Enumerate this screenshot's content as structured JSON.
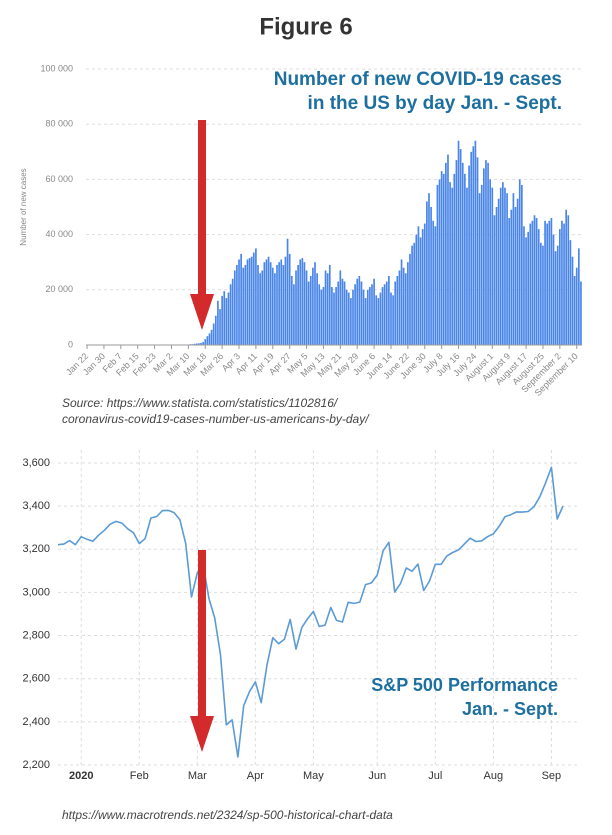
{
  "title": "Figure 6",
  "chart_data": [
    {
      "type": "bar",
      "annotation": [
        "Number of new COVID-19 cases",
        "in the US by day Jan. - Sept."
      ],
      "y_label": "Number of new cases",
      "categories": [
        "Jan 22",
        null,
        null,
        null,
        null,
        null,
        null,
        null,
        "Jan 30",
        null,
        null,
        null,
        null,
        null,
        null,
        null,
        "Feb 7",
        null,
        null,
        null,
        null,
        null,
        null,
        null,
        "Feb 15",
        null,
        null,
        null,
        null,
        null,
        null,
        null,
        "Feb 23",
        null,
        null,
        null,
        null,
        null,
        null,
        null,
        "Mar 2",
        null,
        null,
        null,
        null,
        null,
        null,
        null,
        "Mar 10",
        null,
        null,
        null,
        null,
        null,
        null,
        null,
        "Mar 18",
        null,
        null,
        null,
        null,
        null,
        null,
        null,
        "Mar 26",
        null,
        null,
        null,
        null,
        null,
        null,
        null,
        "Apr 3",
        null,
        null,
        null,
        null,
        null,
        null,
        null,
        "Apr 11",
        null,
        null,
        null,
        null,
        null,
        null,
        null,
        "Apr 19",
        null,
        null,
        null,
        null,
        null,
        null,
        null,
        "Apr 27",
        null,
        null,
        null,
        null,
        null,
        null,
        null,
        "May 5",
        null,
        null,
        null,
        null,
        null,
        null,
        null,
        "May 13",
        null,
        null,
        null,
        null,
        null,
        null,
        null,
        "May 21",
        null,
        null,
        null,
        null,
        null,
        null,
        null,
        "May 29",
        null,
        null,
        null,
        null,
        null,
        null,
        null,
        "June 6",
        null,
        null,
        null,
        null,
        null,
        null,
        null,
        "June 14",
        null,
        null,
        null,
        null,
        null,
        null,
        null,
        "June 22",
        null,
        null,
        null,
        null,
        null,
        null,
        null,
        "June 30",
        null,
        null,
        null,
        null,
        null,
        null,
        null,
        "July 8",
        null,
        null,
        null,
        null,
        null,
        null,
        null,
        "July 16",
        null,
        null,
        null,
        null,
        null,
        null,
        null,
        "July 24",
        null,
        null,
        null,
        null,
        null,
        null,
        null,
        "August 1",
        null,
        null,
        null,
        null,
        null,
        null,
        null,
        "August 9",
        null,
        null,
        null,
        null,
        null,
        null,
        null,
        "August 17",
        null,
        null,
        null,
        null,
        null,
        null,
        null,
        "August 25",
        null,
        null,
        null,
        null,
        null,
        null,
        null,
        "September 2",
        null,
        null,
        null,
        null,
        null,
        null,
        null,
        "September 10",
        null,
        null
      ],
      "values": [
        1,
        0,
        1,
        0,
        3,
        0,
        0,
        0,
        1,
        0,
        1,
        0,
        0,
        0,
        2,
        0,
        0,
        0,
        0,
        0,
        0,
        0,
        0,
        0,
        1,
        0,
        0,
        0,
        0,
        0,
        0,
        0,
        0,
        0,
        12,
        2,
        1,
        3,
        5,
        8,
        12,
        18,
        28,
        47,
        62,
        72,
        120,
        110,
        130,
        280,
        290,
        440,
        530,
        620,
        740,
        1100,
        2100,
        3200,
        4200,
        5500,
        7800,
        10600,
        16000,
        13000,
        17800,
        19500,
        17000,
        19000,
        22000,
        24000,
        27000,
        29000,
        31000,
        33000,
        28000,
        29000,
        31000,
        31500,
        32000,
        33500,
        35000,
        29000,
        26000,
        27000,
        30000,
        31000,
        32000,
        30000,
        28000,
        26000,
        29000,
        30000,
        31000,
        29000,
        32000,
        38500,
        33000,
        25000,
        22000,
        27000,
        29000,
        31000,
        31500,
        30000,
        27000,
        23000,
        25000,
        28000,
        30000,
        26000,
        22000,
        20000,
        21000,
        27000,
        26000,
        29000,
        21000,
        19000,
        21000,
        23000,
        27000,
        24000,
        23000,
        20000,
        19000,
        17000,
        20000,
        22000,
        24000,
        25000,
        23000,
        20000,
        17000,
        20000,
        21000,
        22000,
        24000,
        18000,
        17000,
        19000,
        21000,
        22000,
        23000,
        25000,
        19000,
        18000,
        23000,
        25000,
        27000,
        31000,
        28000,
        26000,
        30000,
        33000,
        36000,
        37000,
        40000,
        43000,
        39000,
        42000,
        44000,
        52000,
        55000,
        50000,
        45000,
        43000,
        58000,
        60000,
        63000,
        62000,
        66000,
        69000,
        59000,
        57000,
        62000,
        67000,
        74000,
        71000,
        66000,
        62000,
        57000,
        65000,
        70000,
        72000,
        74000,
        68000,
        55000,
        58000,
        64000,
        67000,
        66000,
        60000,
        57000,
        47000,
        50000,
        53000,
        57000,
        59000,
        57000,
        55000,
        46000,
        49000,
        55000,
        50000,
        53000,
        60000,
        58000,
        43000,
        39000,
        41000,
        44000,
        45000,
        47000,
        46000,
        42000,
        37000,
        36000,
        45000,
        44000,
        45000,
        46000,
        40000,
        34000,
        36000,
        42000,
        45000,
        44000,
        49000,
        47000,
        38000,
        32000,
        25000,
        28000,
        35000,
        23000
      ],
      "color": "#4a86e8",
      "ylim": [
        0,
        100000
      ],
      "yticks": [
        0,
        {
          "value": 20000,
          "label": "20 000"
        },
        {
          "value": 40000,
          "label": "40 000"
        },
        {
          "value": 60000,
          "label": "60 000"
        },
        {
          "value": 80000,
          "label": "80 000"
        },
        {
          "value": 100000,
          "label": "100 000"
        }
      ],
      "grid": true,
      "source": [
        "Source: https://www.statista.com/statistics/1102816/",
        "coronavirus-covid19-cases-number-us-americans-by-day/"
      ]
    },
    {
      "type": "line",
      "annotation": [
        "S&P 500 Performance",
        "Jan. - Sept."
      ],
      "categories": [
        null,
        null,
        null,
        null,
        "2020",
        null,
        null,
        null,
        null,
        null,
        null,
        null,
        null,
        null,
        "Feb",
        null,
        null,
        null,
        null,
        null,
        null,
        null,
        null,
        null,
        "Mar",
        null,
        null,
        null,
        null,
        null,
        null,
        null,
        null,
        null,
        "Apr",
        null,
        null,
        null,
        null,
        null,
        null,
        null,
        null,
        null,
        "May",
        null,
        null,
        null,
        null,
        null,
        null,
        null,
        null,
        null,
        null,
        "Jun",
        null,
        null,
        null,
        null,
        null,
        null,
        null,
        null,
        null,
        "Jul",
        null,
        null,
        null,
        null,
        null,
        null,
        null,
        null,
        null,
        "Aug",
        null,
        null,
        null,
        null,
        null,
        null,
        null,
        null,
        null,
        "Sep",
        null,
        null
      ],
      "values": [
        3221,
        3224,
        3240,
        3221,
        3258,
        3246,
        3237,
        3265,
        3288,
        3316,
        3329,
        3321,
        3295,
        3276,
        3226,
        3249,
        3345,
        3352,
        3379,
        3380,
        3370,
        3337,
        3226,
        2979,
        3090,
        3130,
        2972,
        2882,
        2711,
        2386,
        2409,
        2237,
        2475,
        2541,
        2585,
        2489,
        2664,
        2790,
        2762,
        2783,
        2875,
        2737,
        2837,
        2878,
        2912,
        2842,
        2848,
        2930,
        2870,
        2863,
        2954,
        2949,
        2955,
        3036,
        3044,
        3081,
        3193,
        3232,
        3002,
        3041,
        3113,
        3098,
        3131,
        3009,
        3053,
        3130,
        3130,
        3169,
        3185,
        3197,
        3224,
        3251,
        3236,
        3239,
        3258,
        3271,
        3306,
        3351,
        3360,
        3373,
        3372,
        3375,
        3397,
        3443,
        3508,
        3580,
        3340,
        3400
      ],
      "color": "#5b9bd5",
      "ylim": [
        2200,
        3660
      ],
      "yticks": [
        {
          "value": 2200,
          "label": "2,200"
        },
        {
          "value": 2400,
          "label": "2,400"
        },
        {
          "value": 2600,
          "label": "2,600"
        },
        {
          "value": 2800,
          "label": "2,800"
        },
        {
          "value": 3000,
          "label": "3,000"
        },
        {
          "value": 3200,
          "label": "3,200"
        },
        {
          "value": 3400,
          "label": "3,400"
        },
        {
          "value": 3600,
          "label": "3,600"
        }
      ],
      "grid": true,
      "source": [
        "https://www.macrotrends.net/2324/sp-500-historical-chart-data"
      ]
    }
  ]
}
